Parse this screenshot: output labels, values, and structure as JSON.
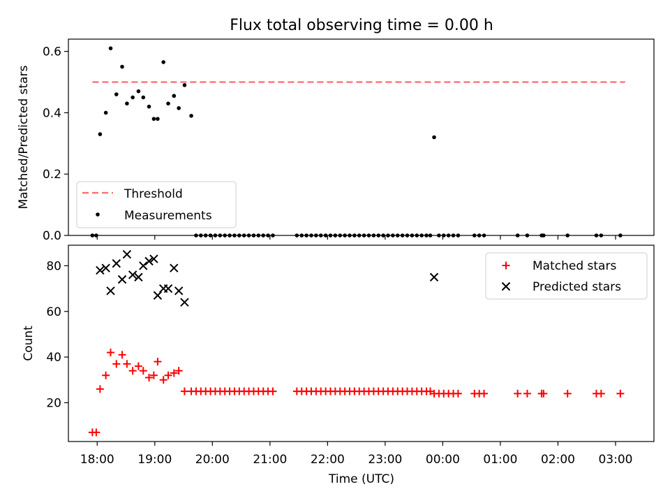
{
  "figure": {
    "title": "Flux total observing time = 0.00 h"
  },
  "colors": {
    "threshold": "#ff6b6b",
    "measurement": "#000000",
    "matched": "#ff0000",
    "predicted": "#000000"
  },
  "chart_data": [
    {
      "type": "scatter",
      "title": "Flux total observing time = 0.00 h",
      "ylabel": "Matched/Predicted stars",
      "xlabel": "",
      "ylim": [
        0,
        0.64
      ],
      "yticks": [
        "0.0",
        "0.2",
        "0.4",
        "0.6"
      ],
      "legend": {
        "placement": "lower-left",
        "entries": [
          "Threshold",
          "Measurements"
        ]
      },
      "threshold": {
        "name": "Threshold",
        "value": 0.5,
        "x_range": [
          "17:55",
          "03:10"
        ],
        "style": "dashed"
      },
      "series": [
        {
          "name": "Measurements",
          "marker": "dot",
          "x": [
            "17:55",
            "17:59",
            "18:03",
            "18:09",
            "18:14",
            "18:20",
            "18:26",
            "18:31",
            "18:37",
            "18:43",
            "18:48",
            "18:54",
            "18:59",
            "19:03",
            "19:09",
            "19:14",
            "19:20",
            "19:25",
            "19:31",
            "19:38",
            "19:43",
            "19:48",
            "19:53",
            "19:58",
            "20:03",
            "20:08",
            "20:13",
            "20:18",
            "20:23",
            "20:28",
            "20:33",
            "20:38",
            "20:43",
            "20:48",
            "20:53",
            "20:58",
            "21:03",
            "21:28",
            "21:33",
            "21:38",
            "21:43",
            "21:48",
            "21:53",
            "21:58",
            "22:03",
            "22:08",
            "22:13",
            "22:18",
            "22:23",
            "22:28",
            "22:33",
            "22:38",
            "22:43",
            "22:48",
            "22:53",
            "22:58",
            "23:03",
            "23:08",
            "23:13",
            "23:18",
            "23:23",
            "23:28",
            "23:33",
            "23:38",
            "23:43",
            "23:47",
            "23:51",
            "23:56",
            "00:01",
            "00:06",
            "00:11",
            "00:16",
            "00:33",
            "00:38",
            "00:43",
            "01:18",
            "01:28",
            "01:43",
            "01:45",
            "02:10",
            "02:40",
            "02:45",
            "03:05"
          ],
          "y": [
            0,
            0,
            0.33,
            0.4,
            0.61,
            0.46,
            0.55,
            0.43,
            0.45,
            0.47,
            0.45,
            0.42,
            0.38,
            0.38,
            0.565,
            0.43,
            0.455,
            0.415,
            0.49,
            0.39,
            0,
            0,
            0,
            0,
            0,
            0,
            0,
            0,
            0,
            0,
            0,
            0,
            0,
            0,
            0,
            0,
            0,
            0,
            0,
            0,
            0,
            0,
            0,
            0,
            0,
            0,
            0,
            0,
            0,
            0,
            0,
            0,
            0,
            0,
            0,
            0,
            0,
            0,
            0,
            0,
            0,
            0,
            0,
            0,
            0,
            0,
            0.32,
            0,
            0,
            0,
            0,
            0,
            0,
            0,
            0,
            0,
            0,
            0,
            0,
            0,
            0,
            0,
            0
          ]
        }
      ]
    },
    {
      "type": "scatter",
      "ylabel": "Count",
      "xlabel": "Time (UTC)",
      "ylim": [
        3,
        89
      ],
      "yticks": [
        "20",
        "40",
        "60",
        "80"
      ],
      "xticks": [
        "18:00",
        "19:00",
        "20:00",
        "21:00",
        "22:00",
        "23:00",
        "00:00",
        "01:00",
        "02:00",
        "03:00"
      ],
      "legend": {
        "placement": "upper-right",
        "entries": [
          "Matched stars",
          "Predicted stars"
        ]
      },
      "series": [
        {
          "name": "Matched stars",
          "marker": "plus",
          "x": [
            "17:55",
            "17:59",
            "18:03",
            "18:09",
            "18:14",
            "18:20",
            "18:26",
            "18:31",
            "18:37",
            "18:43",
            "18:48",
            "18:54",
            "18:59",
            "19:03",
            "19:09",
            "19:14",
            "19:20",
            "19:25",
            "19:31",
            "19:38",
            "19:43",
            "19:48",
            "19:53",
            "19:58",
            "20:03",
            "20:08",
            "20:13",
            "20:18",
            "20:23",
            "20:28",
            "20:33",
            "20:38",
            "20:43",
            "20:48",
            "20:53",
            "20:58",
            "21:03",
            "21:28",
            "21:33",
            "21:38",
            "21:43",
            "21:48",
            "21:53",
            "21:58",
            "22:03",
            "22:08",
            "22:13",
            "22:18",
            "22:23",
            "22:28",
            "22:33",
            "22:38",
            "22:43",
            "22:48",
            "22:53",
            "22:58",
            "23:03",
            "23:08",
            "23:13",
            "23:18",
            "23:23",
            "23:28",
            "23:33",
            "23:38",
            "23:43",
            "23:47",
            "23:51",
            "23:56",
            "00:01",
            "00:06",
            "00:11",
            "00:16",
            "00:33",
            "00:38",
            "00:43",
            "01:18",
            "01:28",
            "01:43",
            "01:45",
            "02:10",
            "02:40",
            "02:45",
            "03:05"
          ],
          "y": [
            7,
            7,
            26,
            32,
            42,
            37,
            41,
            37,
            34,
            36,
            34,
            31,
            32,
            38,
            30,
            32,
            33,
            34,
            25,
            25,
            25,
            25,
            25,
            25,
            25,
            25,
            25,
            25,
            25,
            25,
            25,
            25,
            25,
            25,
            25,
            25,
            25,
            25,
            25,
            25,
            25,
            25,
            25,
            25,
            25,
            25,
            25,
            25,
            25,
            25,
            25,
            25,
            25,
            25,
            25,
            25,
            25,
            25,
            25,
            25,
            25,
            25,
            25,
            25,
            25,
            25,
            24,
            24,
            24,
            24,
            24,
            24,
            24,
            24,
            24,
            24,
            24,
            24,
            24,
            24,
            24,
            24,
            24
          ]
        },
        {
          "name": "Predicted stars",
          "marker": "x",
          "x": [
            "18:03",
            "18:09",
            "18:14",
            "18:20",
            "18:26",
            "18:31",
            "18:37",
            "18:43",
            "18:48",
            "18:54",
            "18:59",
            "19:03",
            "19:09",
            "19:14",
            "19:20",
            "19:25",
            "19:31",
            "23:51"
          ],
          "y": [
            78,
            79,
            69,
            81,
            74,
            85,
            76,
            75,
            80,
            82,
            83,
            67,
            70,
            70,
            79,
            69,
            64,
            75
          ]
        }
      ]
    }
  ]
}
